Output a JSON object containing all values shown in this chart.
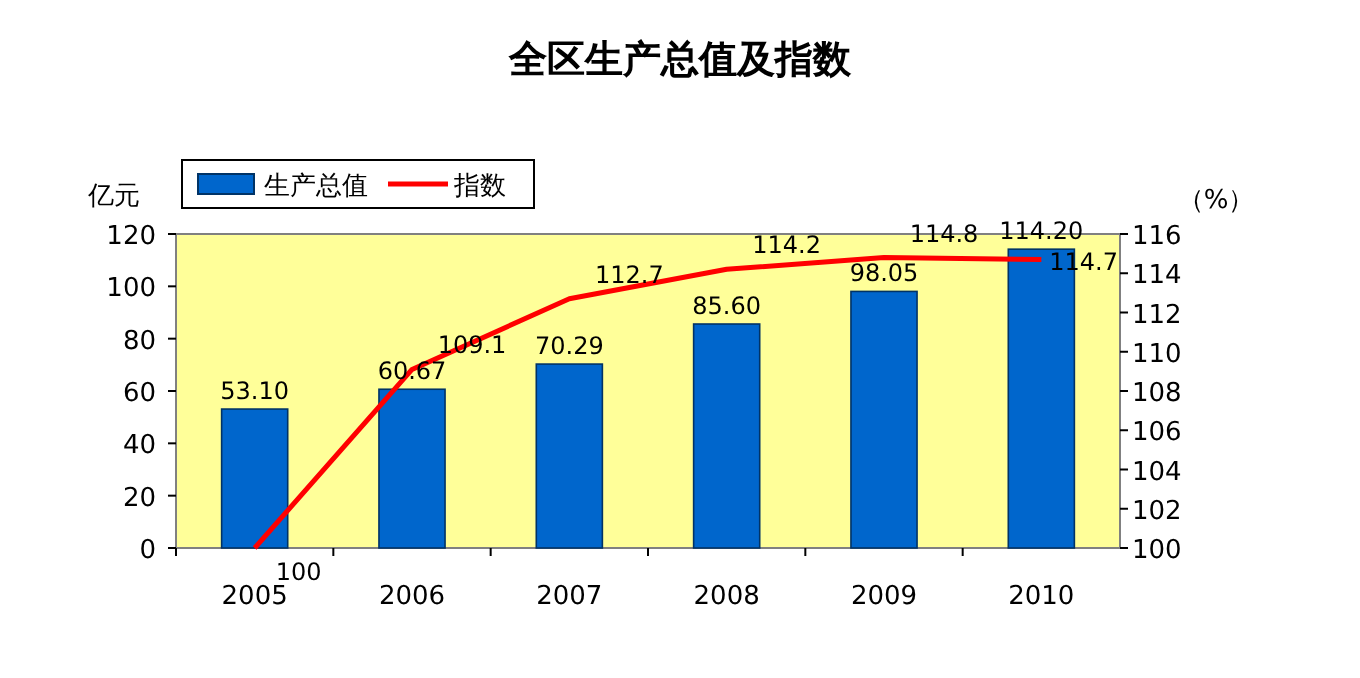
{
  "chart_data": {
    "type": "bar",
    "title": "全区生产总值及指数",
    "ylabel": "亿元",
    "y2label": "（%）",
    "categories": [
      "2005",
      "2006",
      "2007",
      "2008",
      "2009",
      "2010"
    ],
    "series": [
      {
        "name": "生产总值",
        "color": "#0066cc",
        "values": [
          53.1,
          60.67,
          70.29,
          85.6,
          98.05,
          114.2
        ],
        "value_labels": [
          "53.10",
          "60.67",
          "70.29",
          "85.60",
          "98.05",
          "114.20"
        ]
      },
      {
        "name": "指数",
        "type": "line",
        "axis": "y2",
        "color": "#ff0000",
        "values": [
          100,
          109.1,
          112.7,
          114.2,
          114.8,
          114.7
        ],
        "value_labels": [
          "100",
          "109.1",
          "112.7",
          "114.2",
          "114.8",
          "114.7"
        ]
      }
    ],
    "ylim": [
      0,
      120
    ],
    "yticks": [
      0,
      20,
      40,
      60,
      80,
      100,
      120
    ],
    "y2lim": [
      100,
      116
    ],
    "y2ticks": [
      100,
      102,
      104,
      106,
      108,
      110,
      112,
      114,
      116
    ],
    "legend": "top left",
    "grid": false
  }
}
